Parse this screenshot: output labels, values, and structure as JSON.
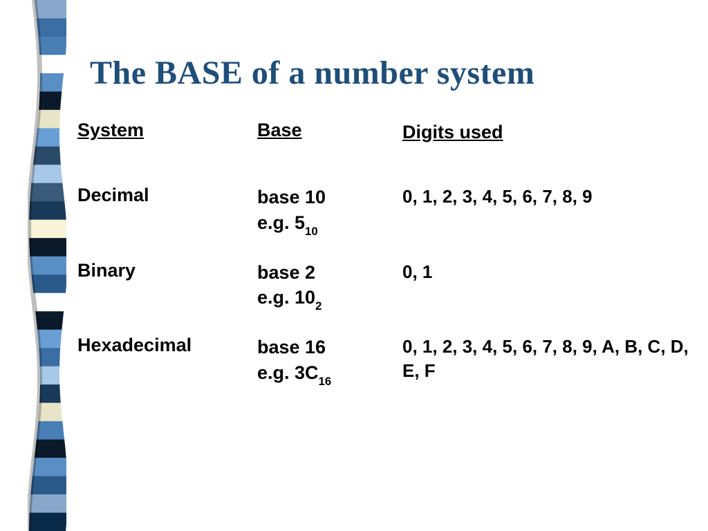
{
  "title": "The BASE of a number system",
  "title_color": "#1f4e79",
  "headers": {
    "system": "System",
    "base": "Base",
    "digits": "Digits used"
  },
  "rows": [
    {
      "system": "Decimal",
      "base_label": "base 10",
      "example_prefix": "e.g. ",
      "example_value": "5",
      "example_sub": "10",
      "digits": "0, 1, 2, 3, 4, 5, 6, 7, 8, 9"
    },
    {
      "system": "Binary",
      "base_label": "base 2",
      "example_prefix": "e.g. ",
      "example_value": "10",
      "example_sub": "2",
      "digits": "0, 1"
    },
    {
      "system": "Hexadecimal",
      "base_label": "base 16",
      "example_prefix": "e.g. ",
      "example_value": "3C",
      "example_sub": "16",
      "digits": "0, 1, 2, 3, 4, 5, 6, 7, 8, 9, A, B, C, D, E, F"
    }
  ],
  "ribbon": {
    "colors": [
      "#89a8c9",
      "#3a6ea5",
      "#4a7fb5",
      "#ffffff",
      "#5a8fc5",
      "#0a1a2a",
      "#e8e4c8",
      "#6a9fd5",
      "#2a4a6a",
      "#a8c8e8",
      "#3a5a7a",
      "#1a3a5a",
      "#f8f4d8",
      "#0a1a2a",
      "#5a8fc5",
      "#2a5a8a",
      "#ffffff",
      "#0a1a2a",
      "#6a9fd5",
      "#3a6ea5",
      "#a8c8e8",
      "#1a3a5a",
      "#e8e4c8",
      "#4a7fb5",
      "#0a1a2a",
      "#5a8fc5",
      "#2a5a8a",
      "#89a8c9",
      "#0a2a4a"
    ]
  }
}
